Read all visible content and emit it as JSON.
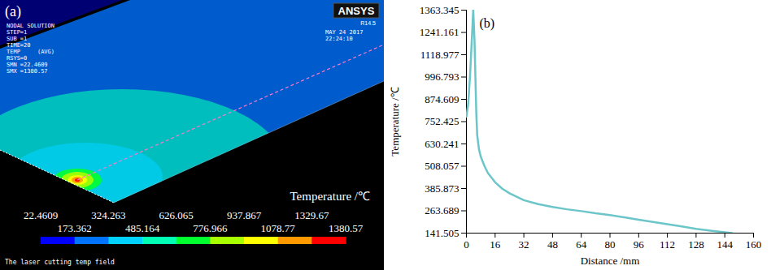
{
  "chart_data": [
    {
      "type": "contour",
      "panel_label": "(a)",
      "header_lines": [
        "NODAL SOLUTION",
        "STEP=1",
        "SUB =1",
        "TIME=20",
        "TEMP     (AVG)",
        "RSYS=0",
        "SMN =22.4609",
        "SMX =1380.57"
      ],
      "logo": "ANSYS",
      "version": "R14.5",
      "date": "MAY 24 2017",
      "time": "22:24:10",
      "legend_title": "Temperature /℃",
      "caption": "The laser cutting temp field",
      "colorbar": {
        "ticks": [
          22.4609,
          173.362,
          324.263,
          485.164,
          626.065,
          776.966,
          937.867,
          1078.77,
          1329.67,
          1380.57
        ],
        "colors": [
          "#0000ff",
          "#0073ff",
          "#00d2ff",
          "#00ffb4",
          "#00ff2e",
          "#a8ff00",
          "#ffff00",
          "#ff9900",
          "#ff0000"
        ]
      }
    },
    {
      "type": "line",
      "panel_label": "(b)",
      "x_label": "Distance /mm",
      "y_label": "Temperature /℃",
      "x": [
        0,
        1,
        2,
        3,
        3.8,
        4.5,
        5,
        5.5,
        6,
        7,
        8,
        10,
        12,
        16,
        20,
        24,
        32,
        40,
        48,
        56,
        64,
        72,
        80,
        88,
        96,
        104,
        112,
        120,
        128,
        136,
        144,
        148
      ],
      "values": [
        780,
        850,
        1000,
        1200,
        1363.345,
        1200,
        1000,
        800,
        680,
        600,
        560,
        510,
        470,
        420,
        385,
        360,
        322,
        300,
        285,
        272,
        262,
        250,
        240,
        228,
        215,
        203,
        190,
        178,
        165,
        155,
        146,
        142
      ],
      "color": "#6cc6c9",
      "xlim": [
        0,
        160
      ],
      "ylim": [
        141.505,
        1363.345
      ],
      "xticks": [
        0,
        16,
        32,
        48,
        64,
        80,
        96,
        112,
        128,
        144,
        160
      ],
      "yticks": [
        141.505,
        263.689,
        385.873,
        508.057,
        630.241,
        752.425,
        874.609,
        996.793,
        1118.977,
        1241.161,
        1363.345
      ]
    }
  ]
}
